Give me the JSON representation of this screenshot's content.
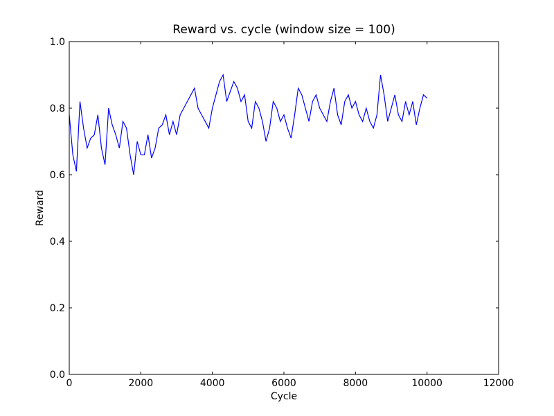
{
  "chart_data": {
    "type": "line",
    "title": "Reward vs. cycle (window size = 100)",
    "x_label": "Cycle",
    "y_label": "Reward",
    "x": [
      0,
      100,
      200,
      300,
      400,
      500,
      600,
      700,
      800,
      900,
      1000,
      1100,
      1200,
      1300,
      1400,
      1500,
      1600,
      1700,
      1800,
      1900,
      2000,
      2100,
      2200,
      2300,
      2400,
      2500,
      2600,
      2700,
      2800,
      2900,
      3000,
      3100,
      3200,
      3300,
      3400,
      3500,
      3600,
      3700,
      3800,
      3900,
      4000,
      4100,
      4200,
      4300,
      4400,
      4500,
      4600,
      4700,
      4800,
      4900,
      5000,
      5100,
      5200,
      5300,
      5400,
      5500,
      5600,
      5700,
      5800,
      5900,
      6000,
      6100,
      6200,
      6300,
      6400,
      6500,
      6600,
      6700,
      6800,
      6900,
      7000,
      7100,
      7200,
      7300,
      7400,
      7500,
      7600,
      7700,
      7800,
      7900,
      8000,
      8100,
      8200,
      8300,
      8400,
      8500,
      8600,
      8700,
      8800,
      8900,
      9000,
      9100,
      9200,
      9300,
      9400,
      9500,
      9600,
      9700,
      9800,
      9900,
      10000
    ],
    "series": [
      {
        "name": "Reward",
        "color": "#0000ff",
        "values": [
          0.78,
          0.66,
          0.61,
          0.82,
          0.74,
          0.68,
          0.71,
          0.72,
          0.78,
          0.68,
          0.63,
          0.8,
          0.75,
          0.72,
          0.68,
          0.76,
          0.74,
          0.66,
          0.6,
          0.7,
          0.66,
          0.66,
          0.72,
          0.65,
          0.68,
          0.74,
          0.75,
          0.78,
          0.72,
          0.76,
          0.72,
          0.78,
          0.8,
          0.82,
          0.84,
          0.86,
          0.8,
          0.78,
          0.76,
          0.74,
          0.8,
          0.84,
          0.88,
          0.9,
          0.82,
          0.85,
          0.88,
          0.86,
          0.82,
          0.84,
          0.76,
          0.74,
          0.82,
          0.8,
          0.76,
          0.7,
          0.74,
          0.82,
          0.8,
          0.76,
          0.78,
          0.74,
          0.71,
          0.78,
          0.86,
          0.84,
          0.8,
          0.76,
          0.82,
          0.84,
          0.8,
          0.78,
          0.76,
          0.82,
          0.86,
          0.78,
          0.75,
          0.82,
          0.84,
          0.8,
          0.82,
          0.78,
          0.76,
          0.8,
          0.76,
          0.74,
          0.78,
          0.9,
          0.84,
          0.76,
          0.8,
          0.84,
          0.78,
          0.76,
          0.82,
          0.78,
          0.82,
          0.75,
          0.8,
          0.84,
          0.83
        ]
      }
    ],
    "xlim": [
      0,
      12000
    ],
    "xticks": [
      0,
      2000,
      4000,
      6000,
      8000,
      10000,
      12000
    ],
    "ylim": [
      0,
      1
    ],
    "yticks": [
      {
        "value": 0,
        "label": "0.0"
      },
      0.2,
      0.4,
      0.6,
      0.8,
      {
        "value": 1,
        "label": "1.0"
      }
    ],
    "grid": false
  }
}
